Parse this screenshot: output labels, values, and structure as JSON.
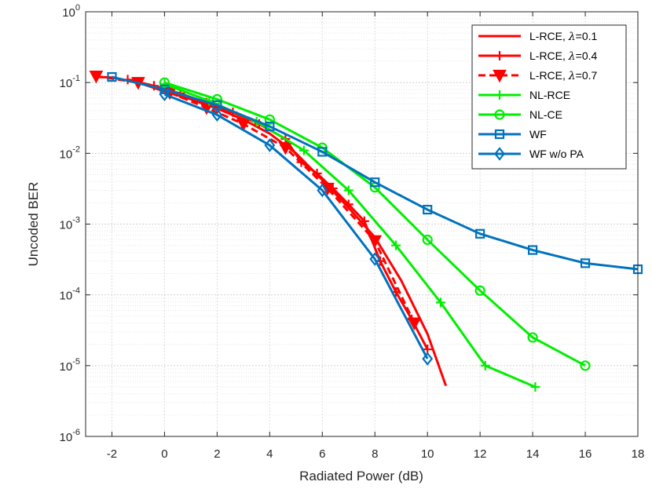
{
  "chart_data": {
    "type": "line",
    "title": "",
    "xlabel": "Radiated Power (dB)",
    "ylabel": "Uncoded BER",
    "xlim": [
      -3,
      18
    ],
    "ylim": [
      1e-06,
      1
    ],
    "yscale": "log",
    "grid": true,
    "legend_position": "top-right",
    "x_ticks": [
      -2,
      0,
      2,
      4,
      6,
      8,
      10,
      12,
      14,
      16,
      18
    ],
    "x_tick_labels": [
      "-2",
      "0",
      "2",
      "4",
      "6",
      "8",
      "10",
      "12",
      "14",
      "16",
      "18"
    ],
    "y_ticks": [
      1e-06,
      1e-05,
      0.0001,
      0.001,
      0.01,
      0.1,
      1
    ],
    "y_tick_labels": [
      {
        "base": "10",
        "exp": "-6"
      },
      {
        "base": "10",
        "exp": "-5"
      },
      {
        "base": "10",
        "exp": "-4"
      },
      {
        "base": "10",
        "exp": "-3"
      },
      {
        "base": "10",
        "exp": "-2"
      },
      {
        "base": "10",
        "exp": "-1"
      },
      {
        "base": "10",
        "exp": "0"
      }
    ],
    "series": [
      {
        "name": "L-RCE, λ=0.1",
        "color": "#ff0000",
        "marker": "none",
        "dashed": false,
        "x": [
          -2.6,
          -2.0,
          -1.0,
          0.0,
          1.0,
          2.0,
          3.0,
          4.0,
          5.0,
          6.0,
          7.0,
          8.0,
          9.0,
          10.0,
          10.7
        ],
        "y": [
          0.12,
          0.118,
          0.1,
          0.075,
          0.058,
          0.043,
          0.03,
          0.019,
          0.01,
          0.0042,
          0.0017,
          0.00065,
          0.00016,
          2.8e-05,
          5.2e-06
        ]
      },
      {
        "name": "L-RCE, λ=0.4",
        "color": "#ff0000",
        "marker": "plus",
        "dashed": false,
        "x": [
          -1.4,
          -0.4,
          0.6,
          1.6,
          2.6,
          3.6,
          4.6,
          5.2,
          5.8,
          6.4,
          7.0,
          7.6,
          8.2,
          8.8,
          9.4,
          10.0
        ],
        "y": [
          0.11,
          0.09,
          0.07,
          0.052,
          0.038,
          0.026,
          0.016,
          0.0075,
          0.0052,
          0.0032,
          0.0019,
          0.0011,
          0.0003,
          0.00011,
          4.5e-05,
          1.7e-05
        ]
      },
      {
        "name": "L-RCE, λ=0.7",
        "color": "#ff0000",
        "marker": "triangle-down",
        "dashed": true,
        "x": [
          -2.6,
          -1.0,
          0.2,
          1.6,
          3.0,
          4.6,
          6.2,
          8.0,
          9.5
        ],
        "y": [
          0.123,
          0.1,
          0.072,
          0.044,
          0.026,
          0.012,
          0.0032,
          0.00058,
          4e-05
        ]
      },
      {
        "name": "NL-RCE",
        "color": "#00ee00",
        "marker": "plus",
        "dashed": false,
        "x": [
          0.0,
          1.7,
          3.5,
          5.3,
          7.0,
          8.8,
          10.5,
          12.2,
          14.1
        ],
        "y": [
          0.095,
          0.055,
          0.028,
          0.011,
          0.003,
          0.0005,
          7.8e-05,
          1e-05,
          5e-06
        ]
      },
      {
        "name": "NL-CE",
        "color": "#00ee00",
        "marker": "circle",
        "dashed": false,
        "x": [
          0.0,
          2.0,
          4.0,
          6.0,
          8.0,
          10.0,
          12.0,
          14.0,
          16.0
        ],
        "y": [
          0.1,
          0.058,
          0.03,
          0.012,
          0.0033,
          0.0006,
          0.000115,
          2.5e-05,
          1e-05
        ]
      },
      {
        "name": "WF",
        "color": "#0072bd",
        "marker": "square",
        "dashed": false,
        "x": [
          -2.0,
          0.0,
          2.0,
          4.0,
          6.0,
          8.0,
          10.0,
          12.0,
          14.0,
          16.0,
          18.0
        ],
        "y": [
          0.12,
          0.08,
          0.048,
          0.024,
          0.0105,
          0.0039,
          0.0016,
          0.00073,
          0.00043,
          0.00028,
          0.00023
        ]
      },
      {
        "name": "WF w/o PA",
        "color": "#0072bd",
        "marker": "diamond",
        "dashed": false,
        "x": [
          0.0,
          2.0,
          4.0,
          6.0,
          8.0,
          10.0
        ],
        "y": [
          0.068,
          0.035,
          0.013,
          0.003,
          0.00032,
          1.25e-05
        ]
      }
    ],
    "legend_entries": [
      {
        "prefix": "L-RCE, ",
        "lambda": "λ",
        "suffix": "=0.1"
      },
      {
        "prefix": "L-RCE, ",
        "lambda": "λ",
        "suffix": "=0.4"
      },
      {
        "prefix": "L-RCE, ",
        "lambda": "λ",
        "suffix": "=0.7"
      },
      {
        "prefix": "NL-RCE",
        "lambda": "",
        "suffix": ""
      },
      {
        "prefix": "NL-CE",
        "lambda": "",
        "suffix": ""
      },
      {
        "prefix": "WF",
        "lambda": "",
        "suffix": ""
      },
      {
        "prefix": "WF w/o PA",
        "lambda": "",
        "suffix": ""
      }
    ]
  }
}
